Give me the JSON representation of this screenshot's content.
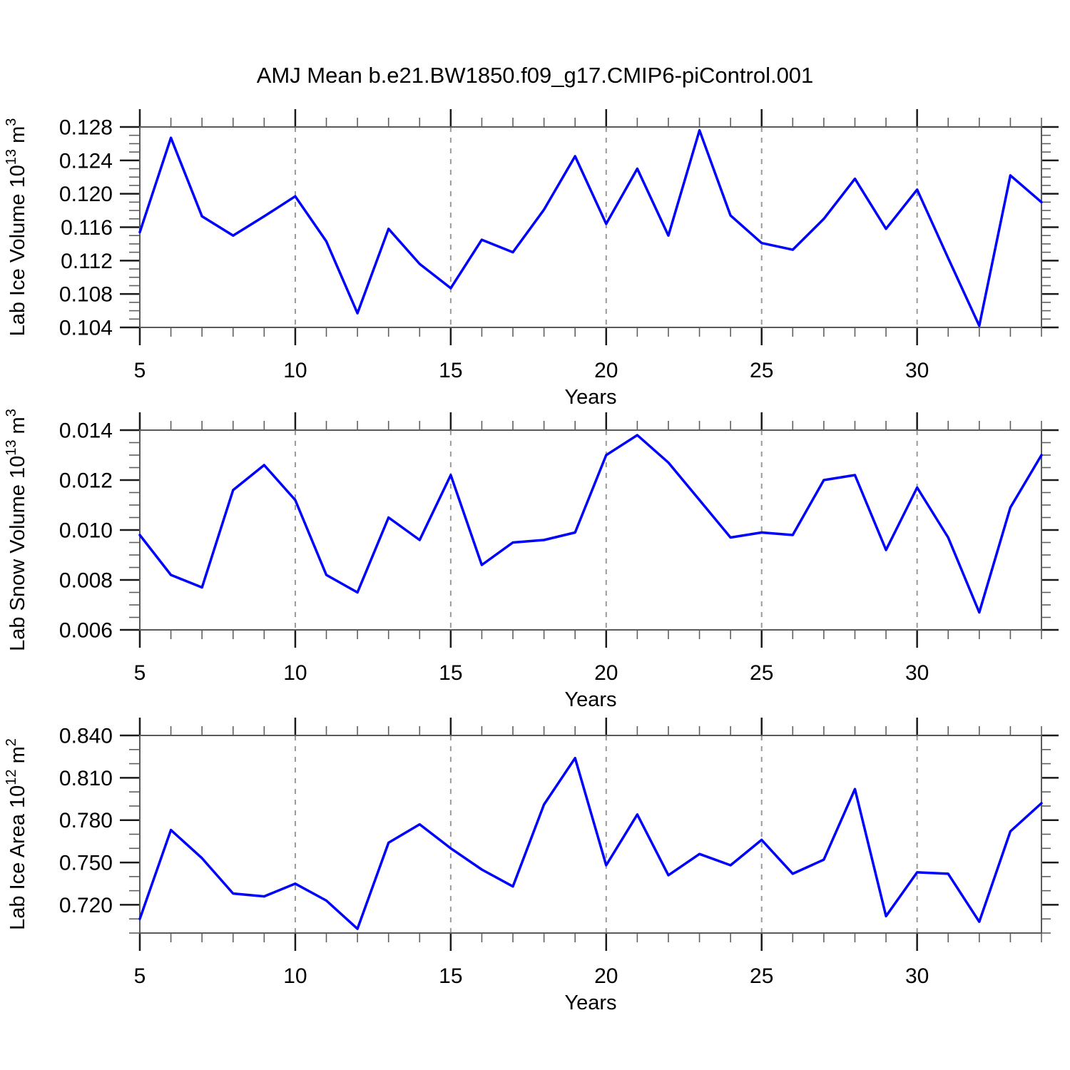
{
  "title": "AMJ Mean b.e21.BW1850.f09_g17.CMIP6-piControl.001",
  "colors": {
    "line": "#0000ff",
    "frame": "#5a5a5a",
    "tick_major": "#1a1a1a",
    "tick_minor": "#5f5f5f",
    "grid": "#9a9a9a",
    "text": "#000000"
  },
  "x_axis": {
    "label": "Years",
    "min": 5,
    "max": 34,
    "major_ticks": [
      5,
      10,
      15,
      20,
      25,
      30
    ],
    "major_tick_labels": [
      "5",
      "10",
      "15",
      "20",
      "25",
      "30"
    ],
    "minor_step": 1,
    "grid_years": [
      10,
      15,
      20,
      25,
      30
    ]
  },
  "chart_data": [
    {
      "id": "ice-volume",
      "type": "line",
      "ylabel_parts": [
        "Lab Ice Volume 10",
        "13",
        " m",
        "3"
      ],
      "ylim": [
        0.104,
        0.128
      ],
      "y_majors": [
        0.104,
        0.108,
        0.112,
        0.116,
        0.12,
        0.124,
        0.128
      ],
      "y_major_labels": [
        "0.104",
        "0.108",
        "0.112",
        "0.116",
        "0.120",
        "0.124",
        "0.128"
      ],
      "y_minor_step": 0.001,
      "x": [
        5,
        6,
        7,
        8,
        9,
        10,
        11,
        12,
        13,
        14,
        15,
        16,
        17,
        18,
        19,
        20,
        21,
        22,
        23,
        24,
        25,
        26,
        27,
        28,
        29,
        30,
        31,
        32,
        33,
        34
      ],
      "values": [
        0.1154,
        0.1267,
        0.1173,
        0.115,
        0.1173,
        0.1197,
        0.1143,
        0.1057,
        0.1158,
        0.1116,
        0.1087,
        0.1145,
        0.113,
        0.1181,
        0.1245,
        0.1164,
        0.123,
        0.115,
        0.1276,
        0.1174,
        0.1141,
        0.1133,
        0.117,
        0.1218,
        0.1158,
        0.1205,
        0.1123,
        0.1042,
        0.1222,
        0.119
      ]
    },
    {
      "id": "snow-volume",
      "type": "line",
      "ylabel_parts": [
        "Lab Snow Volume 10",
        "13",
        " m",
        "3"
      ],
      "ylim": [
        0.006,
        0.014
      ],
      "y_majors": [
        0.006,
        0.008,
        0.01,
        0.012,
        0.014
      ],
      "y_major_labels": [
        "0.006",
        "0.008",
        "0.010",
        "0.012",
        "0.014"
      ],
      "y_minor_step": 0.0005,
      "x": [
        5,
        6,
        7,
        8,
        9,
        10,
        11,
        12,
        13,
        14,
        15,
        16,
        17,
        18,
        19,
        20,
        21,
        22,
        23,
        24,
        25,
        26,
        27,
        28,
        29,
        30,
        31,
        32,
        33,
        34
      ],
      "values": [
        0.0098,
        0.0082,
        0.0077,
        0.0116,
        0.0126,
        0.0112,
        0.0082,
        0.0075,
        0.0105,
        0.0096,
        0.0122,
        0.0086,
        0.0095,
        0.0096,
        0.0099,
        0.013,
        0.0138,
        0.0127,
        0.0112,
        0.0097,
        0.0099,
        0.0098,
        0.012,
        0.0122,
        0.0092,
        0.0117,
        0.0097,
        0.0067,
        0.0109,
        0.013
      ]
    },
    {
      "id": "ice-area",
      "type": "line",
      "ylabel_parts": [
        "Lab Ice Area 10",
        "12",
        " m",
        "2"
      ],
      "ylim": [
        0.7,
        0.84
      ],
      "y_majors": [
        0.72,
        0.75,
        0.78,
        0.81,
        0.84
      ],
      "y_major_labels": [
        "0.720",
        "0.750",
        "0.780",
        "0.810",
        "0.840"
      ],
      "y_minor_step": 0.01,
      "x": [
        5,
        6,
        7,
        8,
        9,
        10,
        11,
        12,
        13,
        14,
        15,
        16,
        17,
        18,
        19,
        20,
        21,
        22,
        23,
        24,
        25,
        26,
        27,
        28,
        29,
        30,
        31,
        32,
        33,
        34
      ],
      "values": [
        0.71,
        0.773,
        0.753,
        0.728,
        0.726,
        0.735,
        0.723,
        0.703,
        0.764,
        0.777,
        0.76,
        0.745,
        0.733,
        0.791,
        0.824,
        0.748,
        0.784,
        0.741,
        0.756,
        0.748,
        0.766,
        0.742,
        0.752,
        0.802,
        0.712,
        0.743,
        0.742,
        0.708,
        0.772,
        0.792
      ]
    }
  ]
}
